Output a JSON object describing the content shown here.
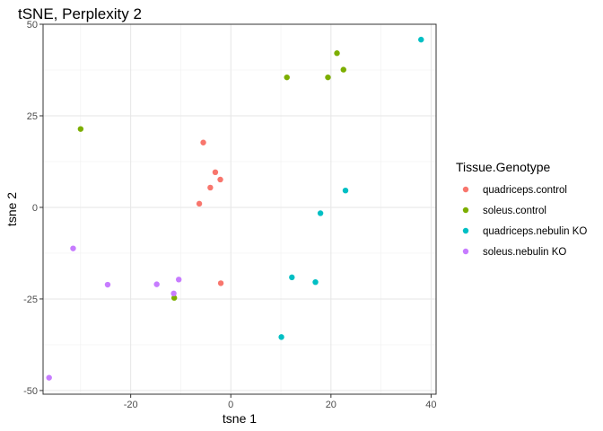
{
  "chart_data": {
    "type": "scatter",
    "title": "tSNE, Perplexity 2",
    "xlabel": "tsne 1",
    "ylabel": "tsne 2",
    "xlim": [
      -37.5,
      41
    ],
    "ylim": [
      -51,
      50
    ],
    "x_ticks": [
      -20,
      0,
      20,
      40
    ],
    "x_tick_labels": [
      "-20",
      "0",
      "20",
      "40"
    ],
    "y_ticks": [
      -50,
      -25,
      0,
      25,
      50
    ],
    "y_tick_labels": [
      "-50",
      "-25",
      "0",
      "25",
      "50"
    ],
    "grid": true,
    "legend": {
      "title": "Tissue.Genotype",
      "position": "right"
    },
    "series": [
      {
        "name": "quadriceps.control",
        "color": "#F8766D",
        "points": [
          {
            "x": -5.5,
            "y": 17.7
          },
          {
            "x": -3.1,
            "y": 9.6
          },
          {
            "x": -2.1,
            "y": 7.6
          },
          {
            "x": -4.1,
            "y": 5.4
          },
          {
            "x": -6.3,
            "y": 1.0
          },
          {
            "x": -2.0,
            "y": -20.7
          }
        ]
      },
      {
        "name": "soleus.control",
        "color": "#7CAE00",
        "points": [
          {
            "x": 21.2,
            "y": 42.1
          },
          {
            "x": 22.5,
            "y": 37.6
          },
          {
            "x": 11.2,
            "y": 35.5
          },
          {
            "x": 19.4,
            "y": 35.5
          },
          {
            "x": -30.0,
            "y": 21.4
          },
          {
            "x": -11.3,
            "y": -24.7
          }
        ]
      },
      {
        "name": "quadriceps.nebulin KO",
        "color": "#00BFC4",
        "points": [
          {
            "x": 38.0,
            "y": 45.8
          },
          {
            "x": 22.9,
            "y": 4.6
          },
          {
            "x": 17.9,
            "y": -1.6
          },
          {
            "x": 12.2,
            "y": -19.1
          },
          {
            "x": 16.9,
            "y": -20.4
          },
          {
            "x": 10.1,
            "y": -35.4
          }
        ]
      },
      {
        "name": "soleus.nebulin KO",
        "color": "#C77CFF",
        "points": [
          {
            "x": -31.5,
            "y": -11.2
          },
          {
            "x": -24.6,
            "y": -21.1
          },
          {
            "x": -14.8,
            "y": -21.0
          },
          {
            "x": -10.4,
            "y": -19.7
          },
          {
            "x": -11.4,
            "y": -23.5
          },
          {
            "x": -36.3,
            "y": -46.5
          }
        ]
      }
    ]
  }
}
